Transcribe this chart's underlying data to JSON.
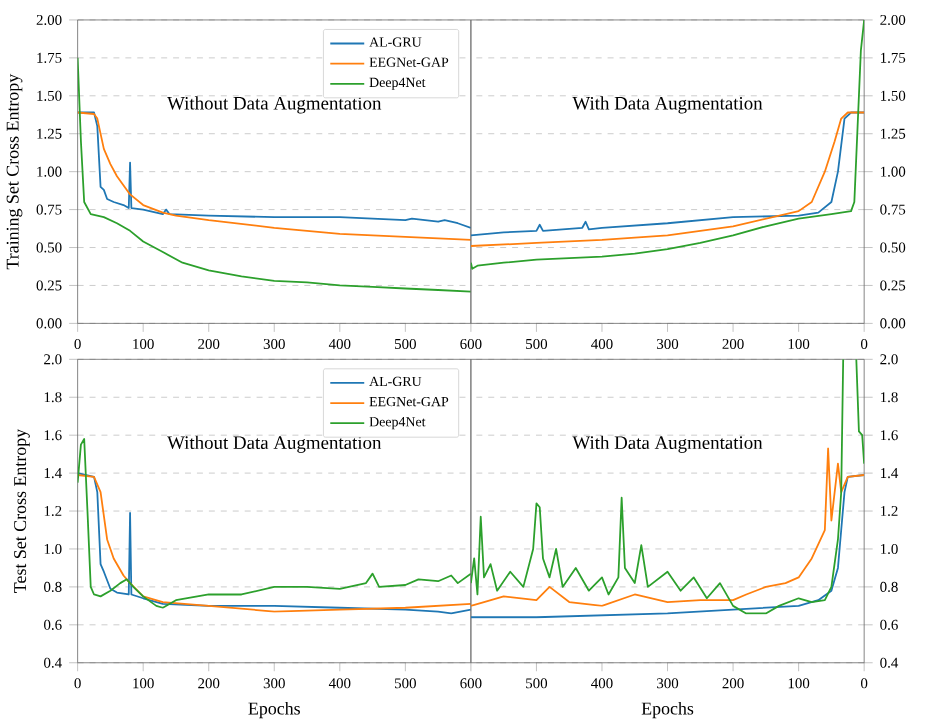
{
  "chart_data": [
    {
      "type": "line",
      "ylabel": "Training Set Cross Entropy",
      "annotations": [
        "Without Data Augmentation"
      ],
      "xlim": [
        0,
        600
      ],
      "ylim": [
        0,
        2
      ],
      "xticks": [
        0,
        100,
        200,
        300,
        400,
        500,
        600
      ],
      "yticks": [
        {
          "value": 0,
          "label": "0.00"
        },
        {
          "value": 0.25,
          "label": "0.25"
        },
        {
          "value": 0.5,
          "label": "0.50"
        },
        {
          "value": 0.75,
          "label": "0.75"
        },
        {
          "value": 1,
          "label": "1.00"
        },
        {
          "value": 1.25,
          "label": "1.25"
        },
        {
          "value": 1.5,
          "label": "1.50"
        },
        {
          "value": 1.75,
          "label": "1.75"
        },
        {
          "value": 2,
          "label": "2.00"
        }
      ],
      "grid": "y",
      "legend": "top right",
      "series": [
        {
          "name": "AL-GRU",
          "color": "#1f77b4",
          "x": [
            0,
            25,
            30,
            35,
            40,
            45,
            55,
            70,
            78,
            80,
            82,
            100,
            130,
            135,
            140,
            200,
            300,
            400,
            500,
            510,
            550,
            560,
            580,
            600
          ],
          "values": [
            1.39,
            1.39,
            1.3,
            0.9,
            0.88,
            0.82,
            0.8,
            0.78,
            0.76,
            1.06,
            0.76,
            0.75,
            0.72,
            0.75,
            0.72,
            0.71,
            0.7,
            0.7,
            0.68,
            0.69,
            0.67,
            0.68,
            0.66,
            0.63
          ]
        },
        {
          "name": "EEGNet-GAP",
          "color": "#ff7f0e",
          "x": [
            0,
            25,
            30,
            40,
            50,
            60,
            80,
            100,
            130,
            150,
            200,
            300,
            400,
            500,
            600
          ],
          "values": [
            1.39,
            1.38,
            1.35,
            1.15,
            1.05,
            0.97,
            0.85,
            0.78,
            0.73,
            0.71,
            0.68,
            0.63,
            0.59,
            0.57,
            0.55
          ]
        },
        {
          "name": "Deep4Net",
          "color": "#2ca02c",
          "x": [
            0,
            5,
            10,
            20,
            40,
            60,
            80,
            100,
            130,
            160,
            200,
            250,
            300,
            350,
            400,
            450,
            500,
            550,
            600
          ],
          "values": [
            1.75,
            1.2,
            0.8,
            0.72,
            0.7,
            0.66,
            0.61,
            0.54,
            0.47,
            0.4,
            0.35,
            0.31,
            0.28,
            0.27,
            0.25,
            0.24,
            0.23,
            0.22,
            0.21
          ]
        }
      ]
    },
    {
      "type": "line",
      "annotations": [
        "With Data Augmentation"
      ],
      "xlim": [
        600,
        0
      ],
      "ylim": [
        0,
        2
      ],
      "xticks": [
        500,
        400,
        300,
        200,
        100,
        0
      ],
      "yticks": [
        {
          "value": 0,
          "label": "0.00"
        },
        {
          "value": 0.25,
          "label": "0.25"
        },
        {
          "value": 0.5,
          "label": "0.50"
        },
        {
          "value": 0.75,
          "label": "0.75"
        },
        {
          "value": 1,
          "label": "1.00"
        },
        {
          "value": 1.25,
          "label": "1.25"
        },
        {
          "value": 1.5,
          "label": "1.50"
        },
        {
          "value": 1.75,
          "label": "1.75"
        },
        {
          "value": 2,
          "label": "2.00"
        }
      ],
      "grid": "y",
      "series": [
        {
          "color": "#1f77b4",
          "x": [
            600,
            550,
            500,
            495,
            490,
            430,
            425,
            420,
            400,
            300,
            200,
            100,
            70,
            50,
            40,
            30,
            20,
            0
          ],
          "values": [
            0.58,
            0.6,
            0.61,
            0.65,
            0.61,
            0.63,
            0.67,
            0.62,
            0.63,
            0.66,
            0.7,
            0.71,
            0.73,
            0.8,
            1.0,
            1.35,
            1.39,
            1.39
          ]
        },
        {
          "color": "#ff7f0e",
          "x": [
            600,
            500,
            400,
            300,
            200,
            100,
            80,
            60,
            45,
            35,
            25,
            0
          ],
          "values": [
            0.51,
            0.53,
            0.55,
            0.58,
            0.64,
            0.74,
            0.8,
            1.0,
            1.2,
            1.35,
            1.39,
            1.39
          ]
        },
        {
          "color": "#2ca02c",
          "x": [
            600,
            598,
            590,
            550,
            500,
            450,
            400,
            350,
            300,
            250,
            200,
            150,
            100,
            50,
            20,
            15,
            10,
            5,
            0
          ],
          "values": [
            0.4,
            0.36,
            0.38,
            0.4,
            0.42,
            0.43,
            0.44,
            0.46,
            0.49,
            0.53,
            0.58,
            0.64,
            0.69,
            0.72,
            0.74,
            0.8,
            1.3,
            1.8,
            2.0
          ]
        }
      ]
    },
    {
      "type": "line",
      "ylabel": "Test Set Cross Entropy",
      "xlabel": "Epochs",
      "annotations": [
        "Without Data Augmentation"
      ],
      "xlim": [
        0,
        600
      ],
      "ylim": [
        0.4,
        2
      ],
      "xticks": [
        0,
        100,
        200,
        300,
        400,
        500,
        600
      ],
      "yticks": [
        {
          "value": 0.4,
          "label": "0.4"
        },
        {
          "value": 0.6,
          "label": "0.6"
        },
        {
          "value": 0.8,
          "label": "0.8"
        },
        {
          "value": 1,
          "label": "1.0"
        },
        {
          "value": 1.2,
          "label": "1.2"
        },
        {
          "value": 1.4,
          "label": "1.4"
        },
        {
          "value": 1.6,
          "label": "1.6"
        },
        {
          "value": 1.8,
          "label": "1.8"
        },
        {
          "value": 2,
          "label": "2.0"
        }
      ],
      "grid": "y",
      "legend": "top right",
      "series": [
        {
          "name": "AL-GRU",
          "color": "#1f77b4",
          "x": [
            0,
            25,
            30,
            35,
            40,
            50,
            60,
            78,
            80,
            82,
            100,
            130,
            200,
            300,
            400,
            500,
            550,
            570,
            600
          ],
          "values": [
            1.4,
            1.38,
            1.3,
            0.92,
            0.88,
            0.79,
            0.77,
            0.76,
            1.19,
            0.76,
            0.74,
            0.71,
            0.7,
            0.7,
            0.69,
            0.68,
            0.67,
            0.66,
            0.68
          ]
        },
        {
          "name": "EEGNet-GAP",
          "color": "#ff7f0e",
          "x": [
            0,
            25,
            35,
            45,
            55,
            70,
            80,
            100,
            130,
            200,
            300,
            400,
            500,
            600
          ],
          "values": [
            1.39,
            1.38,
            1.3,
            1.05,
            0.95,
            0.86,
            0.82,
            0.75,
            0.72,
            0.7,
            0.67,
            0.68,
            0.69,
            0.71
          ]
        },
        {
          "name": "Deep4Net",
          "color": "#2ca02c",
          "x": [
            0,
            5,
            10,
            15,
            20,
            25,
            35,
            50,
            65,
            75,
            85,
            100,
            120,
            130,
            150,
            200,
            250,
            300,
            350,
            400,
            440,
            450,
            460,
            500,
            520,
            550,
            570,
            580,
            600
          ],
          "values": [
            1.35,
            1.55,
            1.58,
            1.2,
            0.8,
            0.76,
            0.75,
            0.78,
            0.82,
            0.84,
            0.8,
            0.75,
            0.7,
            0.69,
            0.73,
            0.76,
            0.76,
            0.8,
            0.8,
            0.79,
            0.82,
            0.87,
            0.8,
            0.81,
            0.84,
            0.83,
            0.86,
            0.82,
            0.87
          ]
        }
      ]
    },
    {
      "type": "line",
      "xlabel": "Epochs",
      "annotations": [
        "With Data Augmentation"
      ],
      "xlim": [
        600,
        0
      ],
      "ylim": [
        0.4,
        2
      ],
      "xticks": [
        500,
        400,
        300,
        200,
        100,
        0
      ],
      "yticks": [
        {
          "value": 0.4,
          "label": "0.4"
        },
        {
          "value": 0.6,
          "label": "0.6"
        },
        {
          "value": 0.8,
          "label": "0.8"
        },
        {
          "value": 1,
          "label": "1.0"
        },
        {
          "value": 1.2,
          "label": "1.2"
        },
        {
          "value": 1.4,
          "label": "1.4"
        },
        {
          "value": 1.6,
          "label": "1.6"
        },
        {
          "value": 1.8,
          "label": "1.8"
        },
        {
          "value": 2,
          "label": "2.0"
        }
      ],
      "grid": "y",
      "series": [
        {
          "color": "#1f77b4",
          "x": [
            600,
            500,
            400,
            300,
            200,
            100,
            70,
            50,
            40,
            35,
            30,
            25,
            0
          ],
          "values": [
            0.64,
            0.64,
            0.65,
            0.66,
            0.68,
            0.7,
            0.73,
            0.78,
            0.9,
            1.1,
            1.3,
            1.38,
            1.39
          ]
        },
        {
          "color": "#ff7f0e",
          "x": [
            600,
            580,
            550,
            500,
            480,
            450,
            400,
            350,
            300,
            250,
            200,
            180,
            150,
            120,
            100,
            80,
            60,
            55,
            50,
            40,
            35,
            25,
            0
          ],
          "values": [
            0.7,
            0.72,
            0.75,
            0.73,
            0.8,
            0.72,
            0.7,
            0.76,
            0.72,
            0.73,
            0.73,
            0.76,
            0.8,
            0.82,
            0.85,
            0.95,
            1.1,
            1.53,
            1.15,
            1.45,
            1.3,
            1.38,
            1.39
          ]
        },
        {
          "color": "#2ca02c",
          "x": [
            600,
            595,
            590,
            585,
            580,
            570,
            560,
            540,
            520,
            505,
            500,
            495,
            490,
            480,
            470,
            460,
            440,
            420,
            400,
            390,
            375,
            370,
            365,
            350,
            340,
            330,
            300,
            280,
            260,
            240,
            220,
            200,
            180,
            150,
            130,
            100,
            80,
            60,
            50,
            40,
            35,
            32,
            20,
            12,
            8,
            3,
            0
          ],
          "values": [
            0.82,
            0.95,
            0.76,
            1.17,
            0.85,
            0.92,
            0.78,
            0.88,
            0.8,
            1.0,
            1.24,
            1.22,
            0.95,
            0.85,
            1.0,
            0.8,
            0.9,
            0.78,
            0.85,
            0.76,
            0.85,
            1.27,
            0.9,
            0.82,
            1.02,
            0.8,
            0.88,
            0.78,
            0.85,
            0.74,
            0.82,
            0.7,
            0.66,
            0.66,
            0.7,
            0.74,
            0.72,
            0.73,
            0.8,
            1.05,
            1.3,
            2.0,
            null,
            2.0,
            1.62,
            1.6,
            1.45
          ]
        }
      ]
    }
  ]
}
